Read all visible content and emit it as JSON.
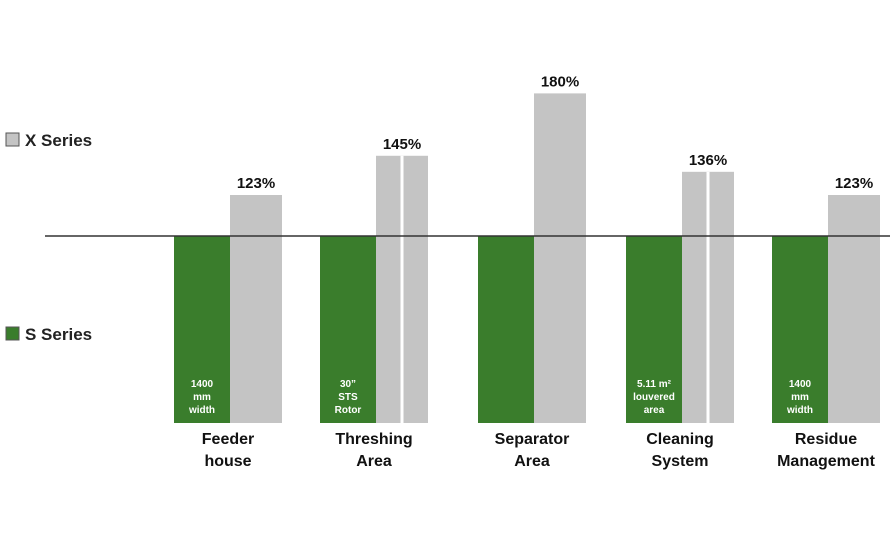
{
  "chart_data": {
    "type": "bar",
    "title": "",
    "xlabel": "",
    "ylabel": "",
    "categories": [
      [
        "Feeder",
        "house"
      ],
      [
        "Threshing",
        "Area"
      ],
      [
        "Separator",
        "Area"
      ],
      [
        "Cleaning",
        "System"
      ],
      [
        "Residue",
        "Management"
      ]
    ],
    "series": [
      {
        "name": "X Series",
        "color": "#c4c4c4",
        "values": [
          123,
          145,
          180,
          136,
          123
        ],
        "labels": [
          "123%",
          "145%",
          "180%",
          "136%",
          "123%"
        ]
      },
      {
        "name": "S Series",
        "color": "#3a7d2c",
        "values": [
          100,
          100,
          100,
          100,
          100
        ],
        "notes": [
          [
            "1400",
            "mm",
            "width"
          ],
          [
            "30”",
            "STS",
            "Rotor"
          ],
          [],
          [
            "5.11 m²",
            "louvered",
            "area"
          ],
          [
            "1400",
            "mm",
            "width"
          ]
        ]
      }
    ],
    "split_bars": [
      false,
      true,
      false,
      true,
      false
    ],
    "legend": {
      "position": "left"
    },
    "ylim": [
      0,
      180
    ],
    "grid": false
  }
}
